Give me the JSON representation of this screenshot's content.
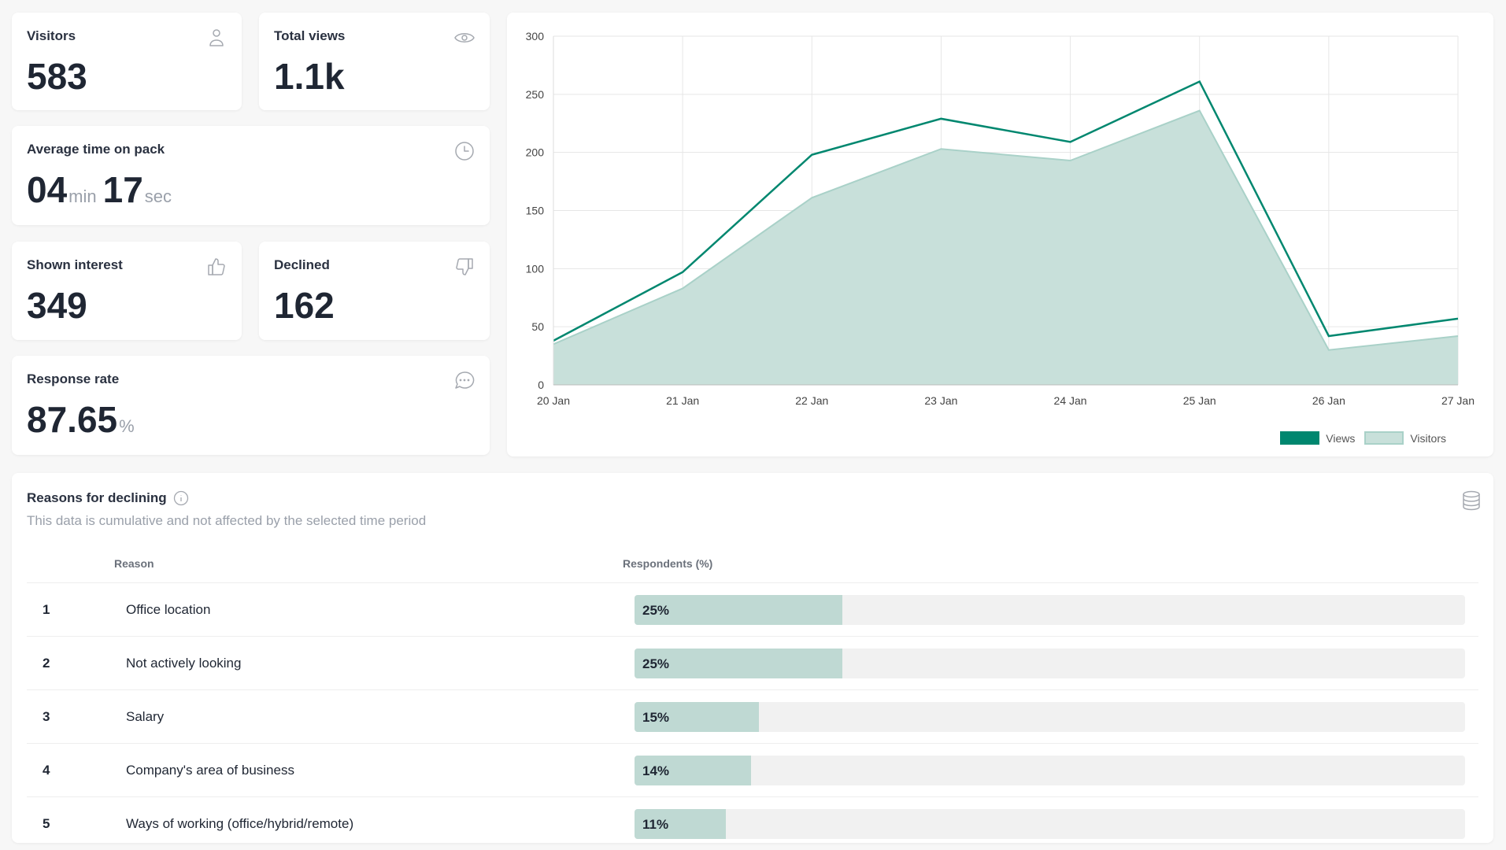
{
  "stats": {
    "visitors": {
      "label": "Visitors",
      "value": "583",
      "icon": "user-icon"
    },
    "total_views": {
      "label": "Total views",
      "value": "1.1k",
      "icon": "eye-icon"
    },
    "avg_time": {
      "label": "Average time on pack",
      "minutes": "04",
      "min_unit": "min",
      "seconds": "17",
      "sec_unit": "sec",
      "icon": "clock-icon"
    },
    "shown_interest": {
      "label": "Shown interest",
      "value": "349",
      "icon": "thumbs-up-icon"
    },
    "declined": {
      "label": "Declined",
      "value": "162",
      "icon": "thumbs-down-icon"
    },
    "response_rate": {
      "label": "Response rate",
      "value": "87.65",
      "unit": "%",
      "icon": "chat-icon"
    }
  },
  "chart_data": {
    "type": "line",
    "categories": [
      "20 Jan",
      "21 Jan",
      "22 Jan",
      "23 Jan",
      "24 Jan",
      "25 Jan",
      "26 Jan",
      "27 Jan"
    ],
    "series": [
      {
        "name": "Views",
        "values": [
          38,
          97,
          198,
          229,
          209,
          261,
          42,
          57
        ],
        "color": "#00876f"
      },
      {
        "name": "Visitors",
        "values": [
          35,
          83,
          161,
          203,
          193,
          236,
          30,
          42
        ],
        "color": "#c8e0da",
        "area": true
      }
    ],
    "ylim": [
      0,
      300
    ],
    "yticks": [
      0,
      50,
      100,
      150,
      200,
      250,
      300
    ],
    "grid": true,
    "legend": "bottom-right"
  },
  "declining": {
    "title": "Reasons for declining",
    "subtitle": "This data is cumulative and not affected by the selected time period",
    "col_reason": "Reason",
    "col_respondents": "Respondents (%)",
    "rows": [
      {
        "n": "1",
        "reason": "Office location",
        "pct": 25,
        "pct_label": "25%"
      },
      {
        "n": "2",
        "reason": "Not actively looking",
        "pct": 25,
        "pct_label": "25%"
      },
      {
        "n": "3",
        "reason": "Salary",
        "pct": 15,
        "pct_label": "15%"
      },
      {
        "n": "4",
        "reason": "Company's area of business",
        "pct": 14,
        "pct_label": "14%"
      },
      {
        "n": "5",
        "reason": "Ways of working (office/hybrid/remote)",
        "pct": 11,
        "pct_label": "11%"
      }
    ]
  }
}
